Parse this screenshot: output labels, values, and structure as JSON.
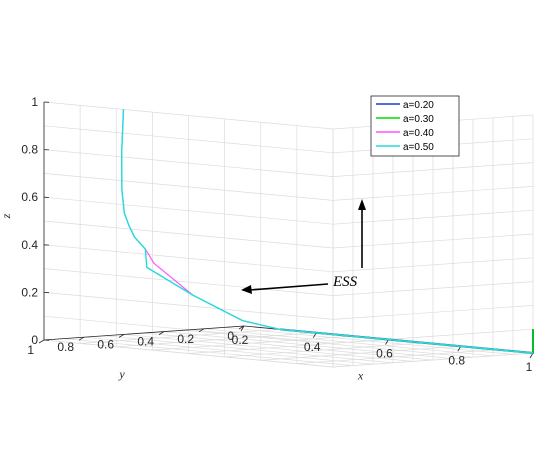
{
  "chart_data": {
    "type": "line",
    "dimensions": 3,
    "title": "",
    "xlabel": "x",
    "ylabel": "y",
    "zlabel": "z",
    "xlim": [
      0.2,
      1
    ],
    "ylim": [
      0,
      1
    ],
    "zlim": [
      0,
      1
    ],
    "xticks": [
      "0.2",
      "0.4",
      "0.6",
      "0.8",
      "1"
    ],
    "yticks": [
      "0",
      "0.2",
      "0.4",
      "0.6",
      "0.8",
      "1"
    ],
    "zticks": [
      "0",
      "0.2",
      "0.4",
      "0.6",
      "0.8",
      "1"
    ],
    "grid": true,
    "legend_position": "top-right",
    "series": [
      {
        "name": "a=0.20",
        "color": "#1a3fc9",
        "points": [
          [
            1,
            0,
            0.1
          ],
          [
            1,
            0,
            0
          ],
          [
            0.3,
            0,
            0
          ]
        ]
      },
      {
        "name": "a=0.30",
        "color": "#00dd00",
        "points": [
          [
            1,
            0,
            0.1
          ],
          [
            1,
            0,
            0
          ],
          [
            0.3,
            0,
            0
          ]
        ]
      },
      {
        "name": "a=0.40",
        "color": "#ff55ff",
        "points": [
          [
            1,
            0,
            0
          ],
          [
            0.3,
            0,
            0
          ],
          [
            0.23,
            0.06,
            0.03
          ],
          [
            0.18,
            0.22,
            0.14
          ],
          [
            0.2,
            0.45,
            0.29
          ],
          [
            0.27,
            0.62,
            0.37
          ],
          [
            0.34,
            0.8,
            0.44
          ],
          [
            0.38,
            0.9,
            0.5
          ],
          [
            0.4,
            0.96,
            0.56
          ],
          [
            0.41,
            0.99,
            0.66
          ],
          [
            0.415,
            1.0,
            0.82
          ],
          [
            0.42,
            1.0,
            1.0
          ]
        ]
      },
      {
        "name": "a=0.50",
        "color": "#22dddd",
        "points": [
          [
            1,
            0,
            0
          ],
          [
            0.3,
            0,
            0
          ],
          [
            0.23,
            0.06,
            0.03
          ],
          [
            0.18,
            0.22,
            0.14
          ],
          [
            0.18,
            0.45,
            0.27
          ],
          [
            0.27,
            0.62,
            0.37
          ],
          [
            0.34,
            0.8,
            0.44
          ],
          [
            0.38,
            0.9,
            0.5
          ],
          [
            0.4,
            0.96,
            0.56
          ],
          [
            0.41,
            0.99,
            0.66
          ],
          [
            0.415,
            1.0,
            0.82
          ],
          [
            0.42,
            1.0,
            1.0
          ]
        ]
      }
    ],
    "annotations": [
      {
        "text": "ESS"
      }
    ]
  }
}
